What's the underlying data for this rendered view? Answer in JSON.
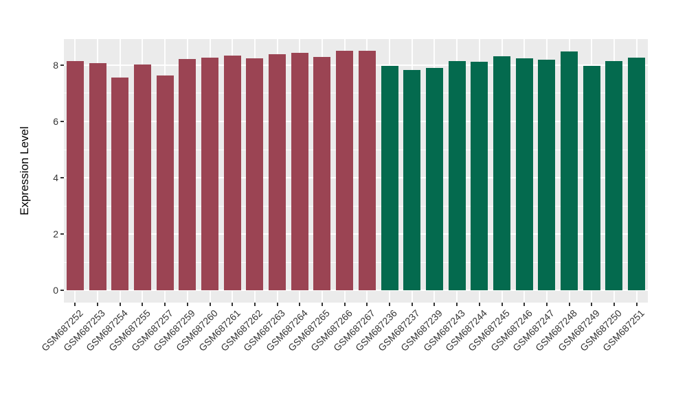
{
  "chart_data": {
    "type": "bar",
    "title": "",
    "xlabel": "",
    "ylabel": "Expression Level",
    "ylim": [
      -0.43,
      8.93
    ],
    "yticks": [
      0,
      2,
      4,
      6,
      8
    ],
    "grid": true,
    "legend": false,
    "bar_width_fraction": 0.75,
    "categories": [
      "GSM687252",
      "GSM687253",
      "GSM687254",
      "GSM687255",
      "GSM687257",
      "GSM687259",
      "GSM687260",
      "GSM687261",
      "GSM687262",
      "GSM687263",
      "GSM687264",
      "GSM687265",
      "GSM687266",
      "GSM687267",
      "GSM687236",
      "GSM687237",
      "GSM687239",
      "GSM687243",
      "GSM687244",
      "GSM687245",
      "GSM687246",
      "GSM687247",
      "GSM687248",
      "GSM687249",
      "GSM687250",
      "GSM687251"
    ],
    "values": [
      8.14,
      8.06,
      7.56,
      8.01,
      7.64,
      8.21,
      8.27,
      8.35,
      8.25,
      8.38,
      8.44,
      8.29,
      8.5,
      8.52,
      7.97,
      7.82,
      7.89,
      8.15,
      8.11,
      8.32,
      8.23,
      8.2,
      8.48,
      7.98,
      8.15,
      8.27
    ],
    "groups": [
      "A",
      "A",
      "A",
      "A",
      "A",
      "A",
      "A",
      "A",
      "A",
      "A",
      "A",
      "A",
      "A",
      "A",
      "B",
      "B",
      "B",
      "B",
      "B",
      "B",
      "B",
      "B",
      "B",
      "B",
      "B",
      "B"
    ],
    "group_colors": {
      "A": "#9B4453",
      "B": "#046A4E"
    }
  },
  "colors": {
    "panel_background": "#EBEBEB",
    "gridline": "#FFFFFF",
    "axis_text": "#333333",
    "axis_title": "#000000",
    "figure_background": "#FFFFFF"
  }
}
